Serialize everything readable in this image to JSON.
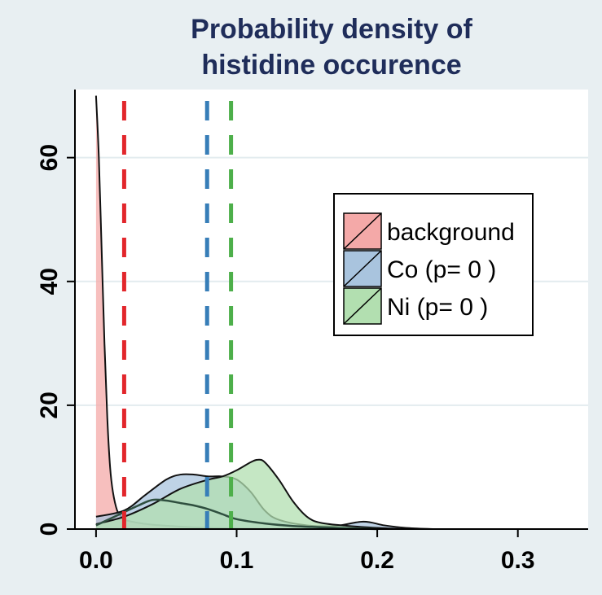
{
  "chart_data": {
    "type": "area",
    "title": [
      "Probability density of",
      "histidine  occurence"
    ],
    "xlabel": "",
    "ylabel": "",
    "xlim": [
      -0.015,
      0.35
    ],
    "ylim": [
      0,
      71
    ],
    "x_ticks": [
      0.0,
      0.1,
      0.2,
      0.3
    ],
    "x_tick_labels": [
      "0.0",
      "0.1",
      "0.2",
      "0.3"
    ],
    "y_ticks": [
      0,
      20,
      40,
      60
    ],
    "y_tick_labels": [
      "0",
      "20",
      "40",
      "60"
    ],
    "grid": "horizontal",
    "legend_position": "top-right",
    "series": [
      {
        "name": "background",
        "fill": "#f4a9a8",
        "mean_line_color": "#e2262b",
        "mean": 0.02,
        "points": [
          [
            0.0,
            70
          ],
          [
            0.002,
            60
          ],
          [
            0.004,
            45
          ],
          [
            0.006,
            30
          ],
          [
            0.008,
            18
          ],
          [
            0.01,
            10
          ],
          [
            0.012,
            6
          ],
          [
            0.015,
            3
          ],
          [
            0.018,
            2
          ],
          [
            0.02,
            1.5
          ],
          [
            0.03,
            1
          ],
          [
            0.04,
            0.7
          ],
          [
            0.06,
            0.4
          ],
          [
            0.08,
            0.2
          ],
          [
            0.1,
            0.1
          ],
          [
            0.14,
            0
          ]
        ]
      },
      {
        "name": "Co (p= 0 )",
        "fill": "#a9c4de",
        "mean_line_color": "#377eb8",
        "mean": 0.079,
        "points": [
          [
            0.0,
            2
          ],
          [
            0.02,
            3
          ],
          [
            0.035,
            5.5
          ],
          [
            0.05,
            8
          ],
          [
            0.06,
            8.8
          ],
          [
            0.07,
            8.8
          ],
          [
            0.08,
            8.5
          ],
          [
            0.09,
            8.5
          ],
          [
            0.1,
            8
          ],
          [
            0.11,
            6
          ],
          [
            0.12,
            3
          ],
          [
            0.13,
            1.5
          ],
          [
            0.15,
            0.6
          ],
          [
            0.17,
            0.5
          ],
          [
            0.19,
            1.2
          ],
          [
            0.205,
            0.6
          ],
          [
            0.22,
            0.2
          ],
          [
            0.24,
            0
          ]
        ]
      },
      {
        "name": "Ni (p= 0 )",
        "fill": "#b2dfb0",
        "mean_line_color": "#4daf4a",
        "mean": 0.096,
        "points": [
          [
            0.0,
            0.8
          ],
          [
            0.02,
            2
          ],
          [
            0.04,
            4
          ],
          [
            0.06,
            6.5
          ],
          [
            0.08,
            8
          ],
          [
            0.09,
            8.5
          ],
          [
            0.1,
            9.5
          ],
          [
            0.11,
            10.8
          ],
          [
            0.115,
            11.2
          ],
          [
            0.12,
            10.8
          ],
          [
            0.13,
            8
          ],
          [
            0.14,
            4.5
          ],
          [
            0.15,
            2
          ],
          [
            0.16,
            1
          ],
          [
            0.18,
            0.5
          ],
          [
            0.2,
            0.2
          ],
          [
            0.22,
            0
          ]
        ]
      }
    ],
    "overlay_outline": {
      "stroke": "#2f4f3f",
      "points": [
        [
          0.0,
          0.6
        ],
        [
          0.015,
          2.2
        ],
        [
          0.03,
          3.8
        ],
        [
          0.04,
          4.7
        ],
        [
          0.05,
          4.6
        ],
        [
          0.06,
          4.2
        ],
        [
          0.07,
          3.8
        ],
        [
          0.08,
          3.2
        ],
        [
          0.09,
          2.4
        ],
        [
          0.1,
          1.6
        ],
        [
          0.12,
          0.9
        ],
        [
          0.14,
          0.5
        ],
        [
          0.17,
          0.2
        ],
        [
          0.2,
          0
        ]
      ]
    }
  }
}
